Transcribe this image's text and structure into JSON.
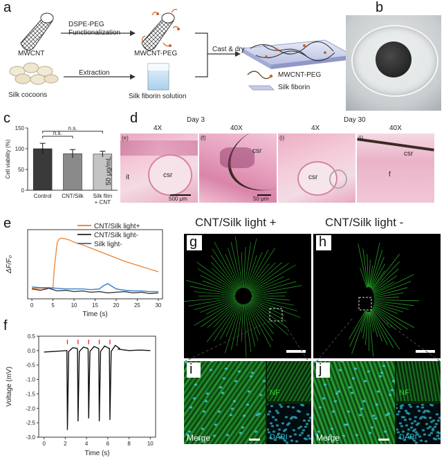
{
  "panel_labels": {
    "a": "a",
    "b": "b",
    "c": "c",
    "d": "d",
    "e": "e",
    "f": "f",
    "g": "g",
    "h": "h",
    "i": "i",
    "j": "j"
  },
  "panel_a": {
    "mwcnt": "MWCNT",
    "func_line1": "DSPE-PEG",
    "func_line2": "Functionalization",
    "mwcnt_peg": "MWCNT-PEG",
    "cast": "Cast & dry",
    "silk_cocoons": "Silk cocoons",
    "extraction": "Extraction",
    "silk_solution": "Silk fiborin solution",
    "legend_peg": "MWCNT-PEG",
    "legend_silk": "Silk fiborin"
  },
  "panel_d": {
    "day3": "Day 3",
    "day30": "Day 30",
    "mag": [
      "4X",
      "40X",
      "4X",
      "40X"
    ],
    "sub": [
      "(e)",
      "(f)",
      "(i)",
      "(j)"
    ],
    "dose": "50 μg/mL",
    "csr": "csr",
    "it": "it",
    "f": "f",
    "scale1": "500 μm",
    "scale2": "50 μm"
  },
  "panel_g_title": "CNT/Silk light +",
  "panel_h_title": "CNT/Silk light -",
  "panel_i": {
    "merge": "Merge",
    "nf": "NF",
    "dapi": "DAPI"
  },
  "panel_j": {
    "merge": "Merge",
    "nf": "NF",
    "dapi": "DAPI"
  },
  "chart_data": [
    {
      "id": "c",
      "type": "bar",
      "categories": [
        "Control",
        "CNT/Silk",
        "Silk film\n+ CNT"
      ],
      "values": [
        100,
        88,
        87
      ],
      "errors": [
        13,
        10,
        7
      ],
      "colors": [
        "#3a3a3a",
        "#8a8a8a",
        "#c4c4c4"
      ],
      "ylabel": "Cell viability (%)",
      "ylim": [
        0,
        150
      ],
      "yticks": [
        0,
        50,
        100,
        150
      ],
      "annotations": [
        "n.s.",
        "n.s."
      ]
    },
    {
      "id": "e",
      "type": "line",
      "xlabel": "Time (s)",
      "ylabel": "ΔF/F₀",
      "xlim": [
        -1,
        31
      ],
      "ylim": [
        -0.15,
        0.9
      ],
      "xticks": [
        0,
        5,
        10,
        15,
        20,
        25,
        30
      ],
      "series": [
        {
          "name": "CNT/Silk light+",
          "color": "#f08a3c",
          "x": [
            0,
            5,
            5.3,
            6,
            6.5,
            7,
            8,
            9,
            10,
            12,
            14,
            16,
            18,
            20,
            22,
            24,
            26,
            28,
            30
          ],
          "y": [
            0.01,
            0.01,
            0.3,
            0.7,
            0.76,
            0.77,
            0.76,
            0.74,
            0.71,
            0.67,
            0.62,
            0.57,
            0.52,
            0.47,
            0.42,
            0.38,
            0.34,
            0.3,
            0.26
          ]
        },
        {
          "name": "CNT/Silk light-",
          "color": "#3a3a3a",
          "x": [
            0,
            2,
            4,
            6,
            8,
            10,
            12,
            14,
            16,
            18,
            20,
            22,
            24,
            26,
            28,
            30
          ],
          "y": [
            0.0,
            -0.02,
            0.01,
            -0.03,
            -0.02,
            -0.04,
            -0.03,
            -0.05,
            -0.04,
            -0.06,
            -0.05,
            -0.04,
            -0.06,
            -0.05,
            -0.07,
            -0.06
          ]
        },
        {
          "name": "Silk light-",
          "color": "#2f7fd1",
          "x": [
            0,
            2,
            4,
            6,
            8,
            10,
            12,
            14,
            16,
            17,
            18,
            19,
            20,
            22,
            24,
            26,
            28,
            30
          ],
          "y": [
            0.03,
            0.02,
            0.02,
            0.01,
            0.0,
            0.0,
            0.0,
            -0.01,
            0.0,
            0.05,
            0.08,
            0.04,
            0.0,
            -0.02,
            -0.03,
            -0.03,
            -0.04,
            -0.04
          ]
        }
      ]
    },
    {
      "id": "f",
      "type": "line",
      "xlabel": "Time (s)",
      "ylabel": "Voltage (mV)",
      "xlim": [
        -0.5,
        10.5
      ],
      "ylim": [
        -3.0,
        0.5
      ],
      "xticks": [
        0,
        2,
        4,
        6,
        8,
        10
      ],
      "yticks": [
        0.5,
        0.0,
        -0.5,
        -1.0,
        -1.5,
        -2.0,
        -2.5,
        -3.0
      ],
      "stimuli_x": [
        2.2,
        3.2,
        4.2,
        5.2,
        6.2
      ],
      "spike_minima": [
        -2.75,
        -2.45,
        -2.35,
        -2.45,
        -2.4
      ],
      "baseline": -0.05
    }
  ]
}
